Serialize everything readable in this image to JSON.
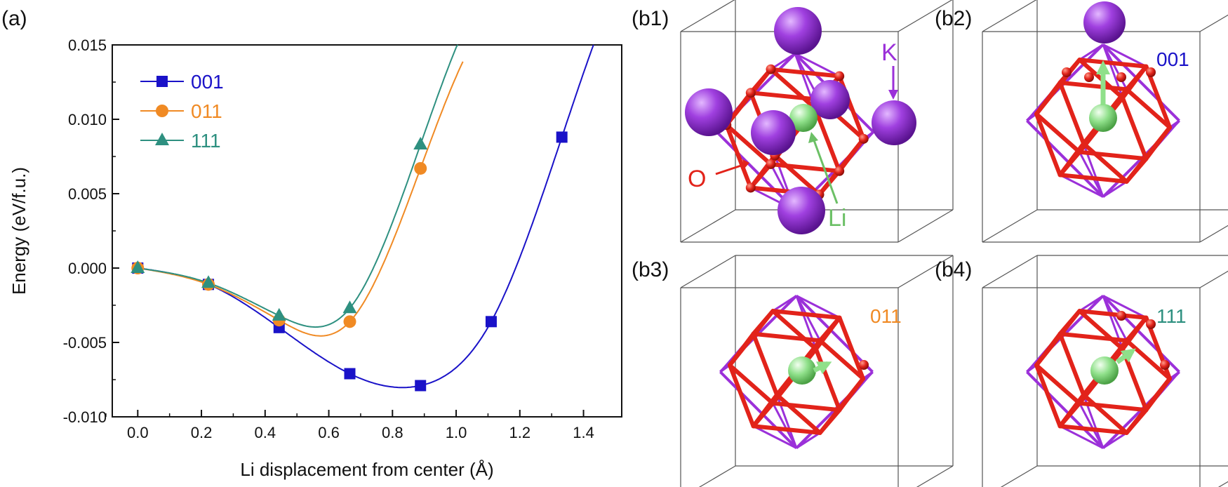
{
  "chart_data": {
    "type": "line",
    "panel_label": "(a)",
    "xlabel": "Li displacement from center (Å)",
    "ylabel": "Energy (eV/f.u.)",
    "xlim": [
      -0.08,
      1.52
    ],
    "ylim": [
      -0.01,
      0.015
    ],
    "x_ticks": [
      "0.0",
      "0.2",
      "0.4",
      "0.6",
      "0.8",
      "1.0",
      "1.2",
      "1.4"
    ],
    "x_tick_values": [
      0,
      0.2,
      0.4,
      0.6,
      0.8,
      1.0,
      1.2,
      1.4
    ],
    "y_ticks": [
      "-0.010",
      "-0.005",
      "0.000",
      "0.005",
      "0.010",
      "0.015"
    ],
    "y_tick_values": [
      -0.01,
      -0.005,
      0.0,
      0.005,
      0.01,
      0.015
    ],
    "legend_position": "top-left",
    "grid": false,
    "series": [
      {
        "name": "001",
        "color": "#1a12c8",
        "marker": "square",
        "x": [
          0.0,
          0.222,
          0.444,
          0.666,
          0.888,
          1.11,
          1.332
        ],
        "y": [
          0.0,
          -0.0011,
          -0.004,
          -0.0071,
          -0.0079,
          -0.0036,
          0.0088
        ]
      },
      {
        "name": "011",
        "color": "#f08a24",
        "marker": "circle",
        "x": [
          0.0,
          0.222,
          0.444,
          0.666,
          0.888
        ],
        "y": [
          0.0,
          -0.0011,
          -0.0035,
          -0.0036,
          0.0067
        ]
      },
      {
        "name": "111",
        "color": "#2e9080",
        "marker": "triangle",
        "x": [
          0.0,
          0.222,
          0.444,
          0.666,
          0.888
        ],
        "y": [
          0.0,
          -0.001,
          -0.0032,
          -0.0027,
          0.0083
        ]
      }
    ]
  },
  "structure_panels": {
    "b1": {
      "label": "(b1)",
      "annotations": {
        "K": "K",
        "O": "O",
        "Li": "Li"
      }
    },
    "b2": {
      "label": "(b2)",
      "direction": "001"
    },
    "b3": {
      "label": "(b3)",
      "direction": "011"
    },
    "b4": {
      "label": "(b4)",
      "direction": "111"
    }
  },
  "colors": {
    "oxygen": "#e2231a",
    "potassium": "#9b30d9",
    "lithium": "#8fe08a",
    "box": "#555555"
  }
}
